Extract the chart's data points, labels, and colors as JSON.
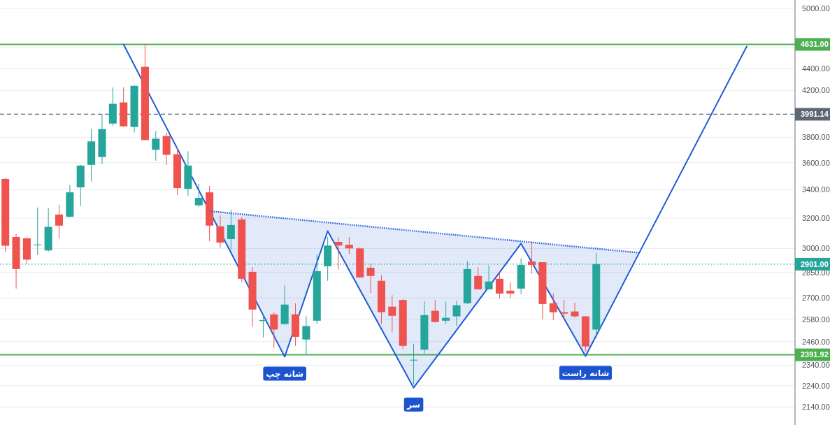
{
  "chart_data": {
    "type": "candlestick",
    "categories": [
      null,
      null,
      null,
      null,
      null,
      null,
      null,
      null,
      null,
      null,
      null,
      null,
      null,
      null,
      null,
      null,
      null,
      null,
      null,
      null,
      null,
      null,
      null,
      null,
      null,
      null,
      null,
      null,
      null,
      null,
      null,
      null,
      null,
      null,
      null,
      null,
      null,
      null,
      null,
      null,
      null,
      null,
      null,
      null,
      null,
      null,
      null,
      null,
      null,
      null,
      null,
      null,
      null,
      null,
      null,
      null,
      null,
      null,
      null,
      null,
      null,
      null,
      null,
      null,
      null,
      null,
      null,
      null,
      null,
      null,
      null,
      null,
      null,
      null
    ],
    "ohlc": [
      [
        3478,
        3488,
        2977,
        3017
      ],
      [
        3074,
        3093,
        2754,
        2871
      ],
      [
        3065,
        3070,
        2904,
        2929
      ],
      [
        3020,
        3273,
        2958,
        3025
      ],
      [
        2987,
        3268,
        2979,
        3140
      ],
      [
        3224,
        3293,
        3065,
        3149
      ],
      [
        3209,
        3432,
        3205,
        3380
      ],
      [
        3416,
        3584,
        3283,
        3578
      ],
      [
        3584,
        3867,
        3459,
        3767
      ],
      [
        3644,
        3991,
        3589,
        3867
      ],
      [
        3913,
        4227,
        3895,
        4081
      ],
      [
        4093,
        4227,
        3885,
        3890
      ],
      [
        3885,
        4245,
        3839,
        4240
      ],
      [
        4415,
        4631,
        3775,
        3778
      ],
      [
        3700,
        3851,
        3616,
        3789
      ],
      [
        3811,
        3839,
        3584,
        3661
      ],
      [
        3666,
        3717,
        3361,
        3411
      ],
      [
        3405,
        3689,
        3356,
        3578
      ],
      [
        3288,
        3443,
        3278,
        3341
      ],
      [
        3380,
        3427,
        3046,
        3149
      ],
      [
        3144,
        3219,
        3005,
        3037
      ],
      [
        3060,
        3258,
        2991,
        3153
      ],
      [
        3191,
        3205,
        2792,
        2812
      ],
      [
        2854,
        2883,
        2539,
        2634
      ],
      [
        2570,
        2611,
        2482,
        2575
      ],
      [
        2607,
        2619,
        2428,
        2524
      ],
      [
        2554,
        2773,
        2550,
        2662
      ],
      [
        2607,
        2669,
        2438,
        2485
      ],
      [
        2471,
        2596,
        2395,
        2543
      ],
      [
        2572,
        2963,
        2554,
        2858
      ],
      [
        2888,
        3074,
        2800,
        3018
      ],
      [
        3042,
        3070,
        2867,
        3018
      ],
      [
        3023,
        3074,
        2963,
        3000
      ],
      [
        3000,
        3005,
        2818,
        2820
      ],
      [
        2879,
        2904,
        2729,
        2829
      ],
      [
        2800,
        2833,
        2554,
        2619
      ],
      [
        2650,
        2716,
        2509,
        2599
      ],
      [
        2688,
        2692,
        2421,
        2438
      ],
      [
        2363,
        2449,
        2247,
        2367
      ],
      [
        2418,
        2680,
        2399,
        2603
      ],
      [
        2627,
        2688,
        2562,
        2565
      ],
      [
        2572,
        2677,
        2554,
        2588
      ],
      [
        2596,
        2684,
        2543,
        2658
      ],
      [
        2669,
        2921,
        2665,
        2871
      ],
      [
        2829,
        2883,
        2748,
        2750
      ],
      [
        2750,
        2892,
        2747,
        2796
      ],
      [
        2812,
        2858,
        2696,
        2725
      ],
      [
        2742,
        2792,
        2700,
        2725
      ],
      [
        2754,
        2938,
        2721,
        2896
      ],
      [
        2917,
        3042,
        2842,
        2896
      ],
      [
        2913,
        2913,
        2580,
        2665
      ],
      [
        2669,
        2725,
        2576,
        2619
      ],
      [
        2619,
        2688,
        2580,
        2611
      ],
      [
        2623,
        2673,
        2588,
        2596
      ],
      [
        2596,
        2596,
        2410,
        2435
      ],
      [
        2524,
        2971,
        2478,
        2901
      ],
      null,
      null,
      null,
      null,
      null,
      null,
      null,
      null,
      null,
      null,
      null,
      null,
      null,
      null,
      null,
      null,
      null,
      null
    ],
    "colors": [
      "#ef5350",
      "#ef5350",
      "#ef5350",
      "#26a69a",
      "#26a69a",
      "#ef5350",
      "#26a69a",
      "#26a69a",
      "#26a69a",
      "#26a69a",
      "#26a69a",
      "#ef5350",
      "#26a69a",
      "#ef5350",
      "#26a69a",
      "#ef5350",
      "#ef5350",
      "#26a69a",
      "#26a69a",
      "#ef5350",
      "#ef5350",
      "#26a69a",
      "#ef5350",
      "#ef5350",
      "#26a69a",
      "#ef5350",
      "#26a69a",
      "#ef5350",
      "#26a69a",
      "#26a69a",
      "#26a69a",
      "#ef5350",
      "#ef5350",
      "#ef5350",
      "#ef5350",
      "#ef5350",
      "#ef5350",
      "#ef5350",
      "#26a69a",
      "#26a69a",
      "#ef5350",
      "#26a69a",
      "#26a69a",
      "#26a69a",
      "#ef5350",
      "#26a69a",
      "#ef5350",
      "#ef5350",
      "#26a69a",
      "#ef5350",
      "#ef5350",
      "#ef5350",
      "#ef5350",
      "#ef5350",
      "#ef5350",
      "#26a69a",
      null,
      null,
      null,
      null,
      null,
      null,
      null,
      null,
      null,
      null,
      null,
      null,
      null,
      null,
      null,
      null,
      null,
      null
    ],
    "series": [
      {
        "type": "line",
        "color": "#1e5bd6",
        "values": [
          null,
          null,
          null,
          null,
          null,
          null,
          null,
          null,
          null,
          null,
          null,
          4631,
          null,
          null,
          null,
          null,
          null,
          null,
          null,
          3248,
          null,
          null,
          null,
          null,
          null,
          null,
          2382,
          null,
          null,
          null,
          3113,
          null,
          null,
          null,
          null,
          null,
          null,
          null,
          2230,
          null,
          null,
          null,
          null,
          null,
          null,
          null,
          null,
          null,
          3031,
          null,
          null,
          null,
          null,
          null,
          2385,
          null,
          null,
          null,
          null,
          2972,
          null,
          null,
          null,
          null,
          null,
          null,
          null,
          null,
          null,
          4610,
          null,
          null,
          null,
          null
        ],
        "lower": [
          null,
          null,
          null,
          null,
          null,
          null,
          null,
          null,
          null,
          null,
          null,
          null,
          null,
          null,
          null,
          null,
          null,
          null,
          null,
          3248,
          null,
          null,
          null,
          null,
          null,
          null,
          2382,
          null,
          null,
          null,
          3113,
          null,
          null,
          null,
          null,
          null,
          null,
          null,
          2230,
          null,
          null,
          null,
          null,
          null,
          null,
          null,
          null,
          null,
          3031,
          null,
          null,
          null,
          null,
          null,
          2385,
          null,
          null,
          null,
          null,
          2972,
          null,
          null,
          null,
          null,
          null,
          null,
          null,
          null,
          null,
          null,
          null,
          null,
          null,
          null
        ],
        "upper": [
          null,
          null,
          null,
          null,
          null,
          null,
          null,
          null,
          null,
          null,
          null,
          null,
          null,
          null,
          null,
          null,
          null,
          null,
          null,
          3248,
          null,
          null,
          null,
          null,
          null,
          null,
          3198,
          null,
          null,
          null,
          3170,
          null,
          null,
          null,
          null,
          null,
          null,
          null,
          3112,
          null,
          null,
          null,
          null,
          null,
          null,
          null,
          null,
          null,
          3045,
          null,
          null,
          null,
          null,
          null,
          3005,
          null,
          null,
          null,
          null,
          2972,
          null,
          null,
          null,
          null,
          null,
          null,
          null,
          null,
          null,
          null,
          null,
          null,
          null,
          null
        ]
      },
      {
        "type": "line",
        "color": "#2a62e0",
        "line_style": "dotted",
        "values": [
          null,
          null,
          null,
          null,
          null,
          null,
          null,
          null,
          null,
          null,
          null,
          null,
          null,
          null,
          null,
          null,
          null,
          null,
          null,
          3248,
          null,
          null,
          null,
          null,
          null,
          null,
          null,
          null,
          null,
          null,
          null,
          null,
          null,
          null,
          null,
          null,
          null,
          null,
          null,
          null,
          null,
          null,
          null,
          null,
          null,
          null,
          null,
          null,
          null,
          null,
          null,
          null,
          null,
          null,
          null,
          null,
          null,
          null,
          null,
          2972,
          null,
          null,
          null,
          null,
          null,
          null,
          null,
          null,
          null,
          null,
          null,
          null,
          null,
          null
        ]
      }
    ],
    "ylim": [
      2060,
      5090
    ],
    "yticks": [
      {
        "value": 5000,
        "label": "5000.00"
      },
      {
        "value": 4600,
        "label": null
      },
      {
        "value": 4400,
        "label": "4400.00"
      },
      {
        "value": 4200,
        "label": "4200.00"
      },
      {
        "value": 3800,
        "label": "3800.00"
      },
      {
        "value": 3600,
        "label": "3600.00"
      },
      {
        "value": 3400,
        "label": "3400.00"
      },
      {
        "value": 3200,
        "label": "3200.00"
      },
      {
        "value": 3000,
        "label": "3000.00"
      },
      {
        "value": 2850,
        "label": "2850.00"
      },
      {
        "value": 2700,
        "label": "2700.00"
      },
      {
        "value": 2580,
        "label": "2580.00"
      },
      {
        "value": 2460,
        "label": "2460.00"
      },
      {
        "value": 2340,
        "label": "2340.00"
      },
      {
        "value": 2240,
        "label": "2240.00"
      },
      {
        "value": 2140,
        "label": "2140.00"
      }
    ],
    "log": "y",
    "grid": "y",
    "ref_lines": [
      {
        "axis": "y",
        "value": 4631,
        "label": "4631.00",
        "color": "#4caf50",
        "line_style": "solid"
      },
      {
        "axis": "y",
        "value": 3991.14,
        "label": "3991.14",
        "color": "#5d6673",
        "line_style": "dashed"
      },
      {
        "axis": "y",
        "value": 2901,
        "label": "2901.00",
        "color": "#26a69a",
        "line_style": "dotted"
      },
      {
        "axis": "y",
        "value": 2391.92,
        "label": "2391.92",
        "color": "#4caf50",
        "line_style": "solid"
      }
    ],
    "annotations": [
      {
        "text": "شانه چپ",
        "y": 2382
      },
      {
        "text": "سر",
        "y": 2230
      },
      {
        "text": "شانه راست",
        "y": 2385
      }
    ]
  }
}
